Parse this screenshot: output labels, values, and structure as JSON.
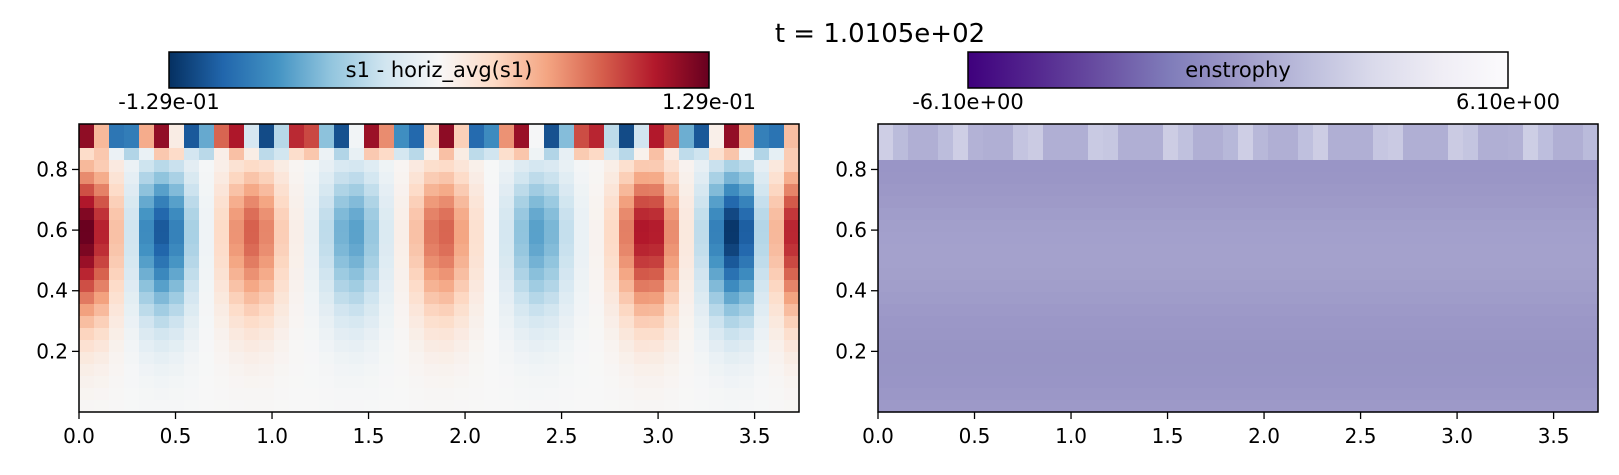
{
  "figure": {
    "title": "t = 1.0105e+02"
  },
  "chart_data": [
    {
      "type": "heatmap",
      "colorbar": {
        "label": "s1 - horiz_avg(s1)",
        "min_label": "-1.29e-01",
        "max_label": "1.29e-01",
        "vmin": -0.129,
        "vmax": 0.129,
        "colormap": "RdBu_r",
        "stops": [
          "#053061",
          "#2166ac",
          "#4393c3",
          "#92c5de",
          "#d1e5f0",
          "#f7f7f7",
          "#fddbc7",
          "#f4a582",
          "#d6604d",
          "#b2182b",
          "#67001f"
        ]
      },
      "x_ticks": [
        "0.0",
        "0.5",
        "1.0",
        "1.5",
        "2.0",
        "2.5",
        "3.0",
        "3.5"
      ],
      "y_ticks": [
        "0.2",
        "0.4",
        "0.6",
        "0.8"
      ],
      "xlim": [
        0,
        3.73
      ],
      "ylim": [
        0,
        0.95
      ],
      "grid": false
    },
    {
      "type": "heatmap",
      "colorbar": {
        "label": "enstrophy",
        "min_label": "-6.10e+00",
        "max_label": "6.10e+00",
        "vmin": -6.1,
        "vmax": 6.1,
        "colormap": "Purples_r",
        "stops": [
          "#3f007d",
          "#54278f",
          "#6a51a3",
          "#807dba",
          "#9e9ac8",
          "#bcbddc",
          "#dadaeb",
          "#efedf5",
          "#fcfbfd"
        ]
      },
      "x_ticks": [
        "0.0",
        "0.5",
        "1.0",
        "1.5",
        "2.0",
        "2.5",
        "3.0",
        "3.5"
      ],
      "y_ticks": [
        "0.2",
        "0.4",
        "0.6",
        "0.8"
      ],
      "xlim": [
        0,
        3.73
      ],
      "ylim": [
        0,
        0.95
      ],
      "grid": false
    }
  ]
}
